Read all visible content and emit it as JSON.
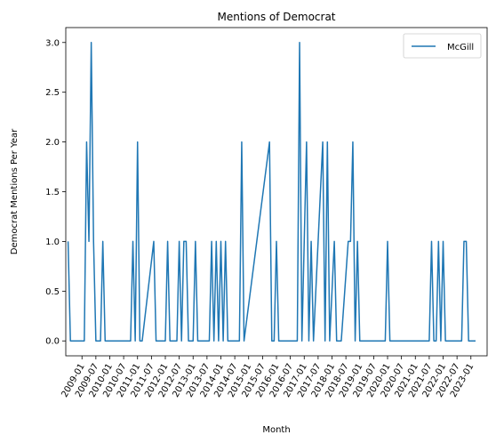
{
  "chart_data": {
    "type": "line",
    "title": "Mentions of Democrat",
    "xlabel": "Month",
    "ylabel": "Democrat Mentions Per Year",
    "x_start": "2009-01",
    "x_end": "2023-01",
    "xlim": [
      "2008-06",
      "2023-08"
    ],
    "ylim": [
      -0.15,
      3.15
    ],
    "yticks": [
      0.0,
      0.5,
      1.0,
      1.5,
      2.0,
      2.5,
      3.0
    ],
    "xticks": [
      "2009-01",
      "2009-07",
      "2010-01",
      "2010-07",
      "2011-01",
      "2011-07",
      "2012-01",
      "2012-07",
      "2013-01",
      "2013-07",
      "2014-01",
      "2014-07",
      "2015-01",
      "2015-07",
      "2016-01",
      "2016-07",
      "2017-01",
      "2017-07",
      "2018-01",
      "2018-07",
      "2019-01",
      "2019-07",
      "2020-01",
      "2020-07",
      "2021-01",
      "2021-07",
      "2022-01",
      "2022-07",
      "2023-01"
    ],
    "grid": false,
    "legend_position": "top-right",
    "series": [
      {
        "name": "McGill",
        "color": "#1f77b4",
        "points": [
          [
            "2008-07",
            1
          ],
          [
            "2008-08",
            0
          ],
          [
            "2009-02",
            0
          ],
          [
            "2009-03",
            2
          ],
          [
            "2009-04",
            1
          ],
          [
            "2009-05",
            3
          ],
          [
            "2009-06",
            1
          ],
          [
            "2009-07",
            0
          ],
          [
            "2009-09",
            0
          ],
          [
            "2009-10",
            1
          ],
          [
            "2009-11",
            0
          ],
          [
            "2010-10",
            0
          ],
          [
            "2010-11",
            1
          ],
          [
            "2010-12",
            0
          ],
          [
            "2011-01",
            2
          ],
          [
            "2011-02",
            0
          ],
          [
            "2011-03",
            0
          ],
          [
            "2011-08",
            1
          ],
          [
            "2011-09",
            0
          ],
          [
            "2012-01",
            0
          ],
          [
            "2012-02",
            1
          ],
          [
            "2012-03",
            0
          ],
          [
            "2012-06",
            0
          ],
          [
            "2012-07",
            1
          ],
          [
            "2012-08",
            0
          ],
          [
            "2012-09",
            1
          ],
          [
            "2012-10",
            1
          ],
          [
            "2012-11",
            0
          ],
          [
            "2013-01",
            0
          ],
          [
            "2013-02",
            1
          ],
          [
            "2013-03",
            0
          ],
          [
            "2013-08",
            0
          ],
          [
            "2013-09",
            1
          ],
          [
            "2013-10",
            0
          ],
          [
            "2013-11",
            1
          ],
          [
            "2013-12",
            0
          ],
          [
            "2014-01",
            1
          ],
          [
            "2014-02",
            0
          ],
          [
            "2014-03",
            1
          ],
          [
            "2014-04",
            0
          ],
          [
            "2014-09",
            0
          ],
          [
            "2014-10",
            2
          ],
          [
            "2014-11",
            0
          ],
          [
            "2015-10",
            2
          ],
          [
            "2015-11",
            0
          ],
          [
            "2015-12",
            0
          ],
          [
            "2016-01",
            1
          ],
          [
            "2016-02",
            0
          ],
          [
            "2016-10",
            0
          ],
          [
            "2016-11",
            3
          ],
          [
            "2016-12",
            0
          ],
          [
            "2017-02",
            2
          ],
          [
            "2017-03",
            0
          ],
          [
            "2017-04",
            1
          ],
          [
            "2017-05",
            0
          ],
          [
            "2017-09",
            2
          ],
          [
            "2017-10",
            0
          ],
          [
            "2017-11",
            2
          ],
          [
            "2017-12",
            0
          ],
          [
            "2018-02",
            1
          ],
          [
            "2018-03",
            0
          ],
          [
            "2018-05",
            0
          ],
          [
            "2018-08",
            1
          ],
          [
            "2018-09",
            1
          ],
          [
            "2018-10",
            2
          ],
          [
            "2018-11",
            0
          ],
          [
            "2018-12",
            1
          ],
          [
            "2019-01",
            0
          ],
          [
            "2019-12",
            0
          ],
          [
            "2020-01",
            1
          ],
          [
            "2020-02",
            0
          ],
          [
            "2021-07",
            0
          ],
          [
            "2021-08",
            1
          ],
          [
            "2021-09",
            0
          ],
          [
            "2021-10",
            0
          ],
          [
            "2021-11",
            1
          ],
          [
            "2021-12",
            0
          ],
          [
            "2022-01",
            1
          ],
          [
            "2022-02",
            0
          ],
          [
            "2022-09",
            0
          ],
          [
            "2022-10",
            1
          ],
          [
            "2022-11",
            1
          ],
          [
            "2022-12",
            0
          ],
          [
            "2023-03",
            0
          ]
        ]
      }
    ]
  }
}
